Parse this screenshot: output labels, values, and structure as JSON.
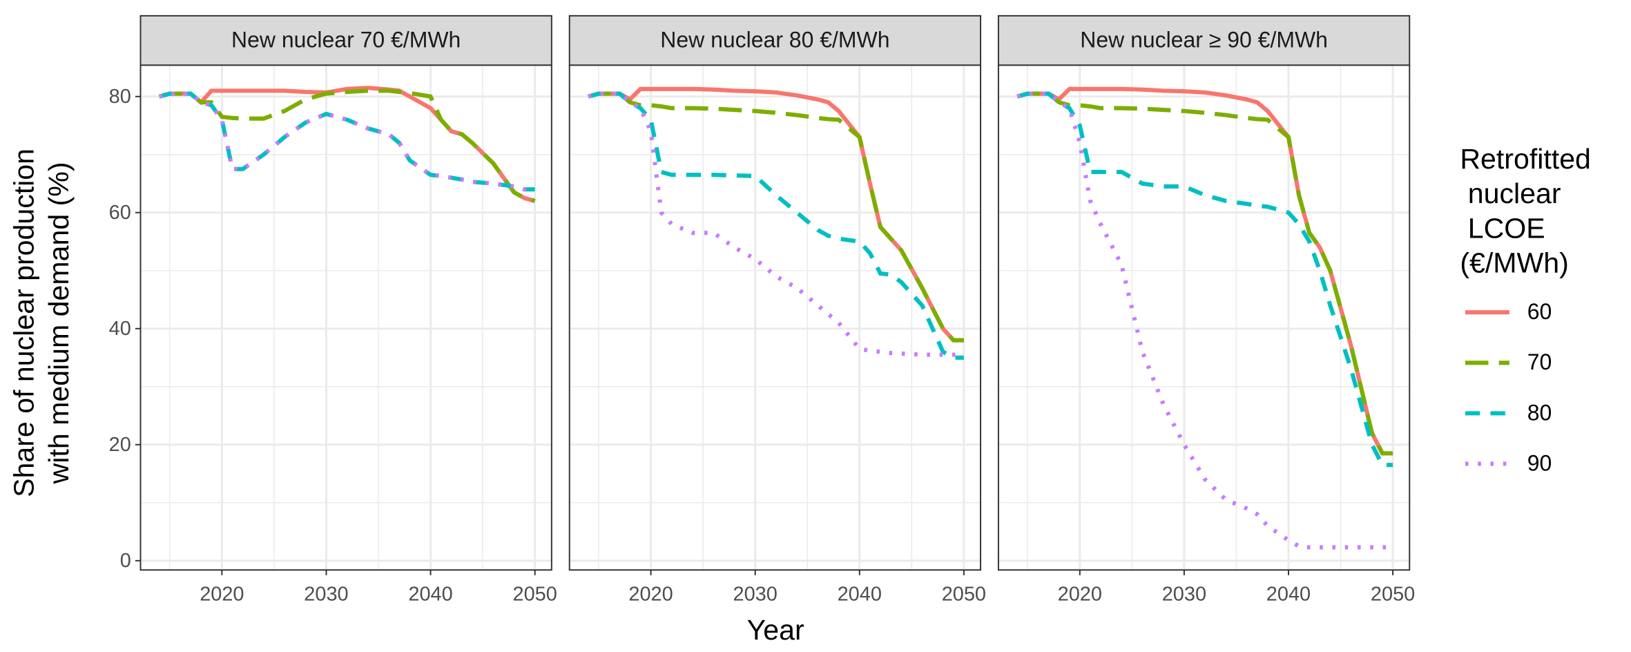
{
  "chart_data": [
    {
      "type": "line",
      "title": "New nuclear 70 €/MWh",
      "x": [
        2014,
        2015,
        2016,
        2017,
        2018,
        2019,
        2020,
        2021,
        2022,
        2024,
        2026,
        2028,
        2030,
        2032,
        2034,
        2036,
        2037,
        2038,
        2040,
        2041,
        2042,
        2043,
        2044,
        2046,
        2048,
        2049,
        2050
      ],
      "series": [
        {
          "name": "60",
          "color": "#F8766D",
          "values": [
            80,
            80.5,
            80.5,
            80.5,
            79,
            81,
            81,
            81,
            81,
            81,
            81,
            80.8,
            80.7,
            81.3,
            81.5,
            81.2,
            81,
            80,
            78,
            76,
            74,
            73.5,
            72,
            68.5,
            63.5,
            62.5,
            62
          ]
        },
        {
          "name": "70",
          "color": "#7CAE00",
          "values": [
            80,
            80.5,
            80.5,
            80.5,
            79,
            79,
            76.5,
            76.3,
            76.2,
            76.2,
            77.5,
            79.5,
            80.5,
            80.8,
            81,
            81,
            80.8,
            80.6,
            80,
            76,
            74,
            73.5,
            72,
            68.5,
            63.5,
            62.5,
            62
          ]
        },
        {
          "name": "80",
          "color": "#00BFC4",
          "values": [
            80,
            80.5,
            80.5,
            80.5,
            79,
            78.5,
            76,
            67.5,
            67.5,
            70,
            73,
            75.5,
            77,
            76,
            74.5,
            73.5,
            72,
            69,
            66.5,
            66.3,
            66,
            65.7,
            65.3,
            65,
            64.5,
            64,
            64
          ]
        },
        {
          "name": "90",
          "color": "#C77CFF",
          "values": [
            80,
            80.5,
            80.5,
            80.5,
            79,
            78.5,
            76,
            67.5,
            67.5,
            70,
            73,
            75.5,
            77,
            76,
            74.5,
            73.5,
            72,
            69,
            66.5,
            66.3,
            66,
            65.7,
            65.3,
            65,
            64.5,
            64,
            64
          ]
        }
      ],
      "xlim": [
        2012.2,
        2051.6
      ],
      "ylim": [
        -1.6,
        85.4
      ],
      "xticks": [
        2020,
        2030,
        2040,
        2050
      ],
      "yticks": [
        0,
        20,
        40,
        60,
        80
      ],
      "grid": true
    },
    {
      "type": "line",
      "title": "New nuclear 80 €/MWh",
      "x": [
        2014,
        2015,
        2016,
        2017,
        2018,
        2019,
        2020,
        2021,
        2022,
        2024,
        2026,
        2028,
        2030,
        2032,
        2034,
        2036,
        2037,
        2038,
        2040,
        2041,
        2042,
        2043,
        2044,
        2046,
        2048,
        2049,
        2050
      ],
      "series": [
        {
          "name": "60",
          "color": "#F8766D",
          "values": [
            80,
            80.5,
            80.5,
            80.5,
            79.5,
            81.3,
            81.3,
            81.3,
            81.3,
            81.3,
            81.2,
            81,
            80.9,
            80.7,
            80.2,
            79.5,
            79,
            77.5,
            73,
            65,
            57.5,
            55.5,
            53.5,
            47,
            40,
            38,
            38
          ]
        },
        {
          "name": "70",
          "color": "#7CAE00",
          "values": [
            80,
            80.5,
            80.5,
            80.5,
            79,
            78.5,
            78.5,
            78.3,
            78,
            78,
            77.9,
            77.7,
            77.5,
            77.2,
            76.8,
            76.3,
            76.1,
            76,
            73,
            65,
            57.5,
            55.5,
            53.5,
            47,
            40,
            38,
            38
          ]
        },
        {
          "name": "80",
          "color": "#00BFC4",
          "values": [
            80,
            80.5,
            80.5,
            80.5,
            79,
            78,
            76,
            67,
            66.5,
            66.5,
            66.5,
            66.4,
            66.3,
            63,
            60,
            57,
            56,
            55.5,
            55,
            53,
            49.5,
            49.3,
            48,
            44,
            36,
            35,
            35
          ]
        },
        {
          "name": "90",
          "color": "#C77CFF",
          "values": [
            80,
            80.5,
            80.5,
            80.5,
            79,
            78,
            74,
            60,
            58,
            56.5,
            56.5,
            54,
            52,
            49,
            47,
            44,
            42.5,
            41,
            36.5,
            36.2,
            36,
            35.8,
            35.7,
            35.5,
            35.5,
            35.5,
            35.5
          ]
        }
      ],
      "xlim": [
        2012.2,
        2051.6
      ],
      "ylim": [
        -1.6,
        85.4
      ],
      "xticks": [
        2020,
        2030,
        2040,
        2050
      ],
      "yticks": [
        0,
        20,
        40,
        60,
        80
      ],
      "grid": true
    },
    {
      "type": "line",
      "title": "New nuclear ≥ 90 €/MWh",
      "x": [
        2014,
        2015,
        2016,
        2017,
        2018,
        2019,
        2020,
        2021,
        2022,
        2024,
        2026,
        2028,
        2030,
        2032,
        2034,
        2036,
        2037,
        2038,
        2040,
        2041,
        2042,
        2043,
        2044,
        2046,
        2048,
        2049,
        2050
      ],
      "series": [
        {
          "name": "60",
          "color": "#F8766D",
          "values": [
            80,
            80.5,
            80.5,
            80.5,
            79.5,
            81.3,
            81.3,
            81.3,
            81.3,
            81.3,
            81.2,
            81,
            80.9,
            80.7,
            80.2,
            79.5,
            79,
            77.5,
            73,
            63,
            56.5,
            54,
            50,
            37,
            22,
            18.5,
            18.5
          ]
        },
        {
          "name": "70",
          "color": "#7CAE00",
          "values": [
            80,
            80.5,
            80.5,
            80.5,
            79,
            78.5,
            78.5,
            78.3,
            78,
            78,
            77.9,
            77.7,
            77.5,
            77.2,
            76.8,
            76.3,
            76.1,
            76,
            73,
            63,
            56.5,
            54,
            50,
            37,
            22,
            18.5,
            18.5
          ]
        },
        {
          "name": "80",
          "color": "#00BFC4",
          "values": [
            80,
            80.5,
            80.5,
            80.5,
            79,
            78,
            75,
            67,
            67,
            67,
            65,
            64.5,
            64.5,
            63,
            62,
            61.5,
            61.2,
            61,
            60,
            58,
            55,
            50,
            44,
            33,
            20,
            16.5,
            16.5
          ]
        },
        {
          "name": "90",
          "color": "#C77CFF",
          "values": [
            80,
            80.5,
            80.5,
            80.5,
            79,
            78,
            72,
            62,
            58,
            51,
            36,
            27,
            20,
            14,
            10.5,
            9,
            8,
            6,
            3.5,
            2.5,
            2.3,
            2.3,
            2.3,
            2.3,
            2.3,
            2.3,
            2.3
          ]
        }
      ],
      "xlim": [
        2012.2,
        2051.6
      ],
      "ylim": [
        -1.6,
        85.4
      ],
      "xticks": [
        2020,
        2030,
        2040,
        2050
      ],
      "yticks": [
        0,
        20,
        40,
        60,
        80
      ],
      "grid": true
    }
  ],
  "x_label": "Year",
  "y_label": "Share of nuclear production\nwith medium demand (%)",
  "legend_title": "Retrofitted\n nuclear\n LCOE\n(€/MWh)"
}
